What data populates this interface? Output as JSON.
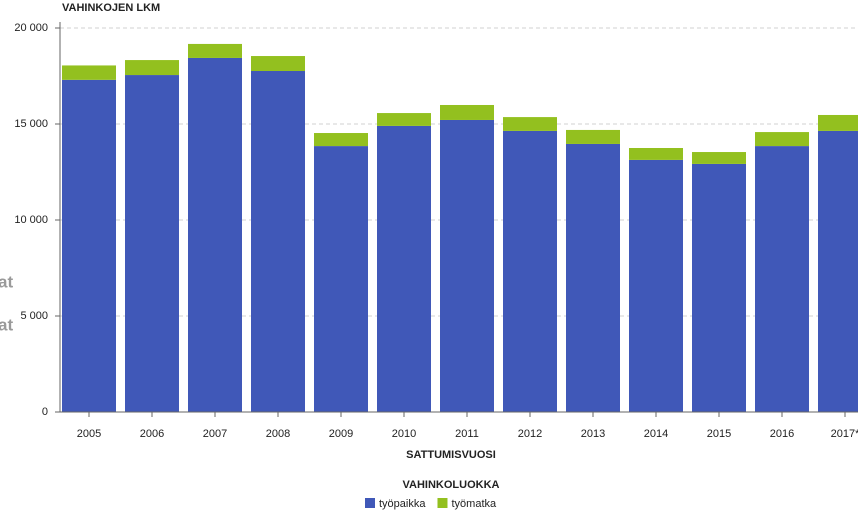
{
  "chart_data": {
    "type": "stacked-bar",
    "y_axis_title": "VAHINKOJEN LKM",
    "x_axis_title": "SATTUMISVUOSI",
    "legend_title": "VAHINKOLUOKKA",
    "categories": [
      "2005",
      "2006",
      "2007",
      "2008",
      "2009",
      "2010",
      "2011",
      "2012",
      "2013",
      "2014",
      "2015",
      "2016",
      "2017*"
    ],
    "series": [
      {
        "name": "työpaikka",
        "color": "#4058b8",
        "values": [
          17300,
          17550,
          18440,
          17760,
          13850,
          14900,
          15210,
          14640,
          13960,
          13130,
          12920,
          13850,
          14640
        ]
      },
      {
        "name": "työmatka",
        "color": "#93c01f",
        "values": [
          750,
          780,
          730,
          780,
          680,
          670,
          780,
          720,
          730,
          620,
          620,
          730,
          830
        ]
      }
    ],
    "ylim": [
      0,
      20000
    ],
    "yticks": [
      0,
      {
        "value": 5000,
        "label": "5 000"
      },
      {
        "value": 10000,
        "label": "10 000"
      },
      {
        "value": 15000,
        "label": "15 000"
      },
      {
        "value": 20000,
        "label": "20 000"
      }
    ],
    "grid": true,
    "legend_position": "bottom",
    "overlay_texts": [
      "at",
      "at"
    ]
  }
}
